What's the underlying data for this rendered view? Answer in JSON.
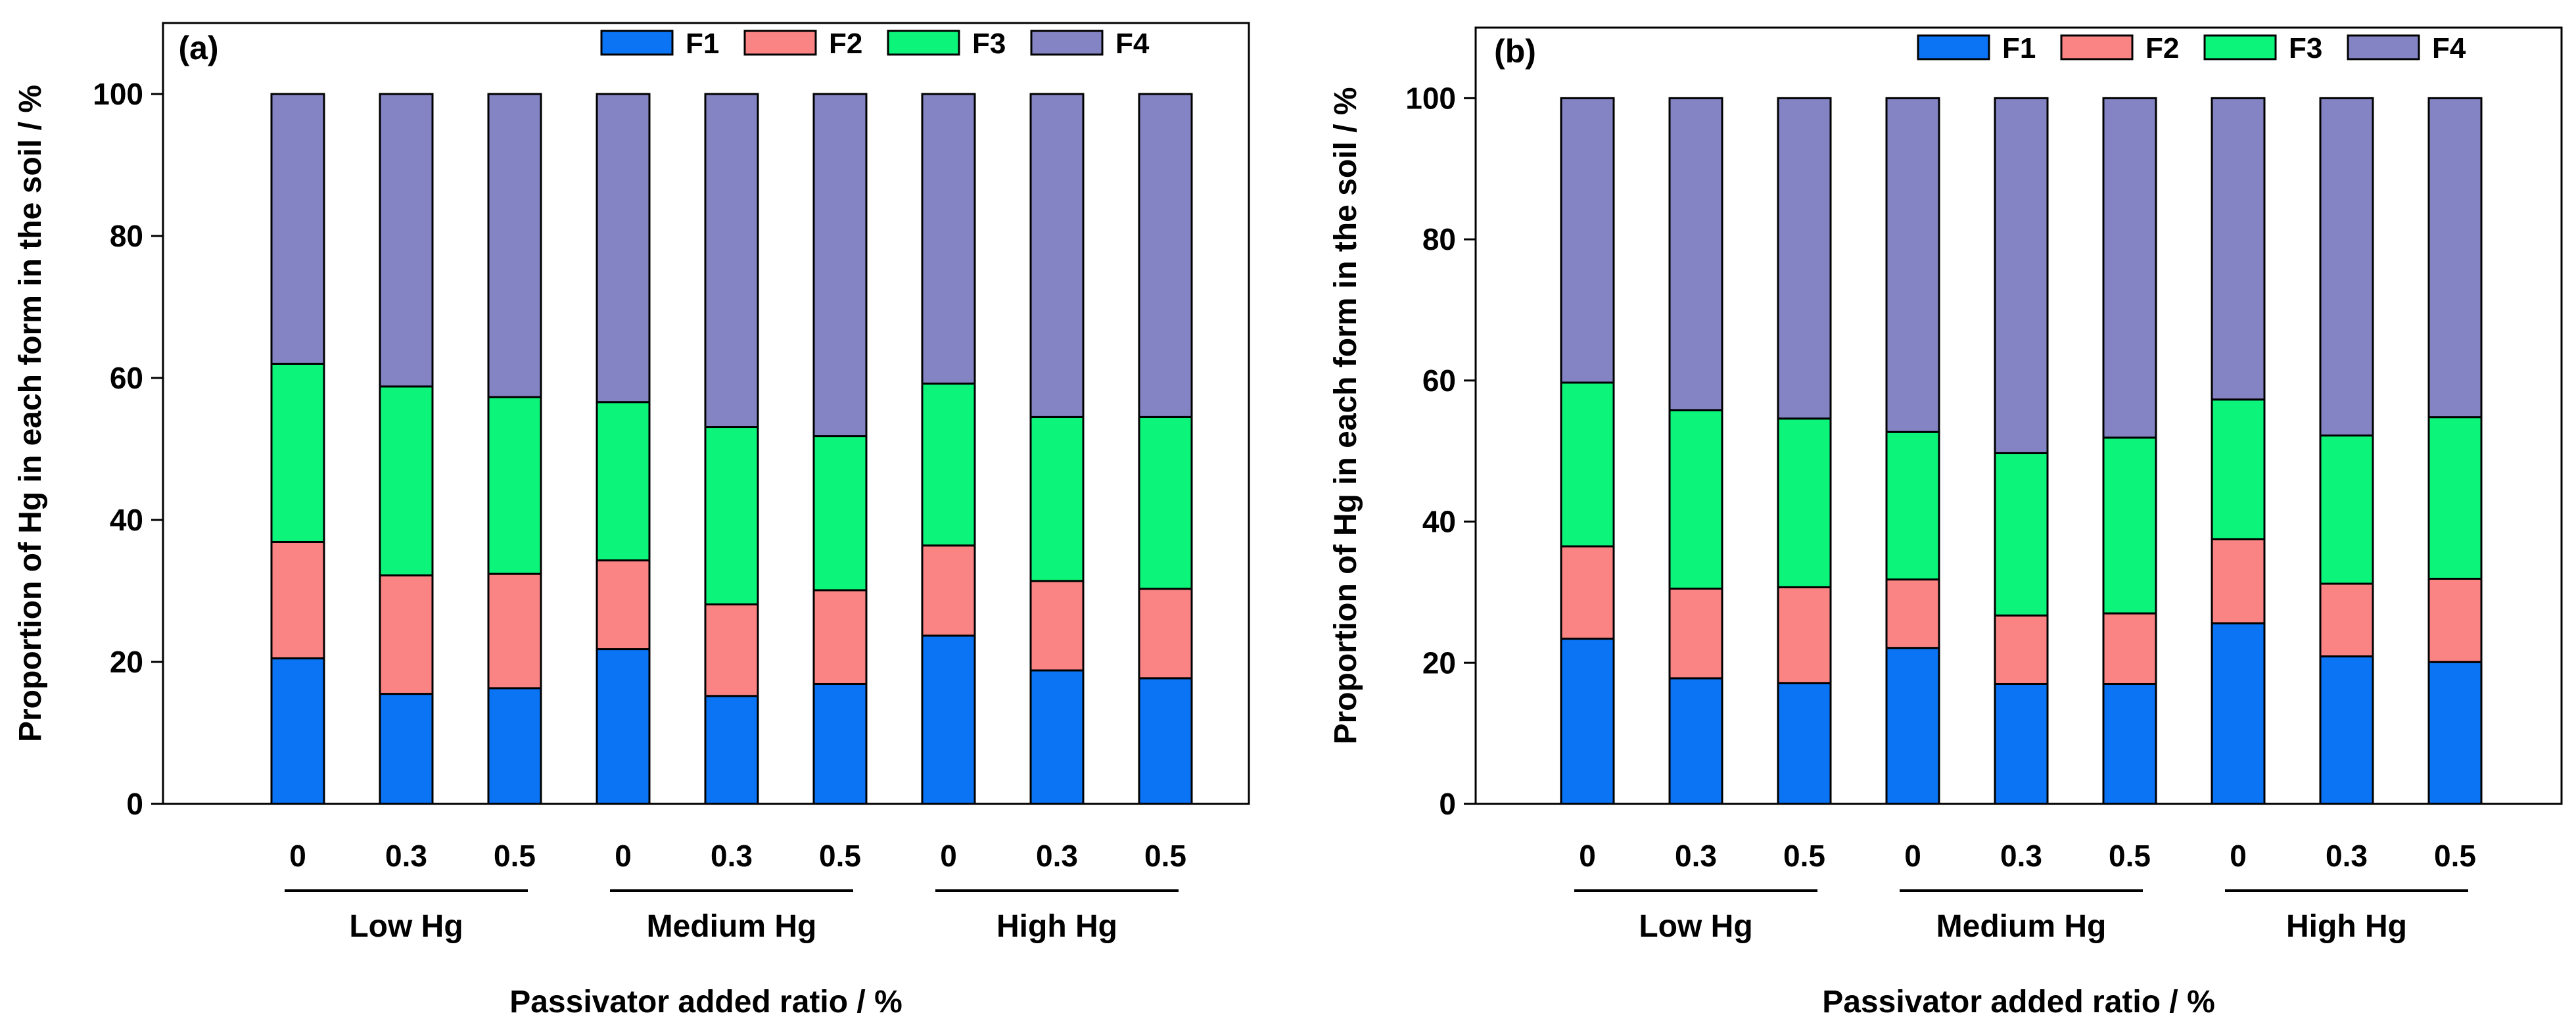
{
  "chart_data": [
    {
      "type": "bar",
      "stacked": true,
      "panel_label": "(a)",
      "title": "",
      "ylabel": "Proportion of Hg in each form in the soil / %",
      "xlabel": "Passivator added ratio / %",
      "ylim": [
        0,
        110
      ],
      "yticks": [
        0,
        20,
        40,
        60,
        80,
        100
      ],
      "legend_position": "top-right",
      "categories": [
        "0",
        "0.3",
        "0.5",
        "0",
        "0.3",
        "0.5",
        "0",
        "0.3",
        "0.5"
      ],
      "groups": [
        {
          "label": "Low Hg",
          "count": 3
        },
        {
          "label": "Medium Hg",
          "count": 3
        },
        {
          "label": "High Hg",
          "count": 3
        }
      ],
      "series": [
        {
          "name": "F1",
          "color": "#0a74f5",
          "values": [
            20.5,
            15.5,
            16.3,
            21.8,
            15.2,
            16.9,
            23.7,
            18.8,
            17.7
          ]
        },
        {
          "name": "F2",
          "color": "#fa8484",
          "values": [
            16.4,
            16.7,
            16.1,
            12.5,
            12.9,
            13.2,
            12.7,
            12.6,
            12.6
          ]
        },
        {
          "name": "F3",
          "color": "#0cf57a",
          "values": [
            25.1,
            26.6,
            24.9,
            22.3,
            25.0,
            21.7,
            22.8,
            23.1,
            24.2
          ]
        },
        {
          "name": "F4",
          "color": "#8484c4",
          "values": [
            38.0,
            41.2,
            42.7,
            43.4,
            46.9,
            48.2,
            40.8,
            45.5,
            45.5
          ]
        }
      ]
    },
    {
      "type": "bar",
      "stacked": true,
      "panel_label": "(b)",
      "title": "",
      "ylabel": "Proportion of Hg in each form in the soil / %",
      "xlabel": "Passivator added ratio / %",
      "ylim": [
        0,
        110
      ],
      "yticks": [
        0,
        20,
        40,
        60,
        80,
        100
      ],
      "legend_position": "top-right",
      "categories": [
        "0",
        "0.3",
        "0.5",
        "0",
        "0.3",
        "0.5",
        "0",
        "0.3",
        "0.5"
      ],
      "groups": [
        {
          "label": "Low Hg",
          "count": 3
        },
        {
          "label": "Medium Hg",
          "count": 3
        },
        {
          "label": "High Hg",
          "count": 3
        }
      ],
      "series": [
        {
          "name": "F1",
          "color": "#0a74f5",
          "values": [
            23.4,
            17.8,
            17.1,
            22.1,
            17.0,
            17.0,
            25.6,
            20.9,
            20.1
          ]
        },
        {
          "name": "F2",
          "color": "#fa8484",
          "values": [
            13.1,
            12.7,
            13.6,
            9.7,
            9.7,
            10.0,
            11.9,
            10.3,
            11.8
          ]
        },
        {
          "name": "F3",
          "color": "#0cf57a",
          "values": [
            23.2,
            25.3,
            23.9,
            20.9,
            23.0,
            24.9,
            19.8,
            21.0,
            22.9
          ]
        },
        {
          "name": "F4",
          "color": "#8484c4",
          "values": [
            40.3,
            44.2,
            45.4,
            47.3,
            50.3,
            48.1,
            42.7,
            47.8,
            45.2
          ]
        }
      ]
    }
  ]
}
